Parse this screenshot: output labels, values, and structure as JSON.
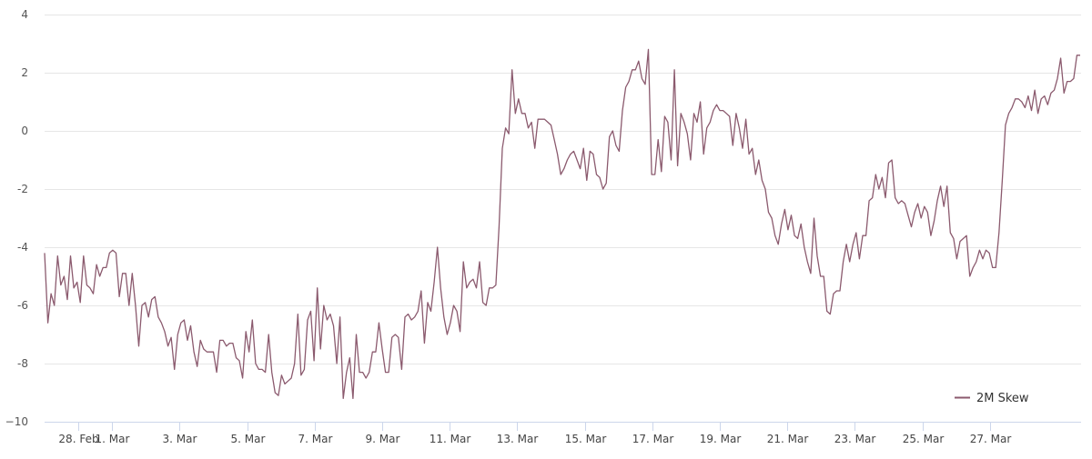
{
  "chart_data": {
    "type": "line",
    "title": "",
    "xlabel": "",
    "ylabel": "",
    "ylim": [
      -10,
      4
    ],
    "yticks": [
      4,
      2,
      0,
      -2,
      -4,
      -6,
      -8,
      -10
    ],
    "xtick_labels": [
      "28. Feb",
      "1. Mar",
      "3. Mar",
      "5. Mar",
      "7. Mar",
      "9. Mar",
      "11. Mar",
      "13. Mar",
      "15. Mar",
      "17. Mar",
      "19. Mar",
      "21. Mar",
      "23. Mar",
      "25. Mar",
      "27. Mar"
    ],
    "grid": true,
    "legend_position": "bottom-right",
    "series": [
      {
        "name": "2M Skew",
        "color": "#8b5a6e",
        "x_start_day": -1.0,
        "step_days": 0.125,
        "values": [
          -4.2,
          -6.6,
          -5.6,
          -6.0,
          -4.3,
          -5.3,
          -5.0,
          -5.8,
          -4.3,
          -5.4,
          -5.2,
          -5.9,
          -4.3,
          -5.3,
          -5.4,
          -5.6,
          -4.6,
          -5.0,
          -4.7,
          -4.7,
          -4.2,
          -4.1,
          -4.2,
          -5.7,
          -4.9,
          -4.9,
          -6.0,
          -4.9,
          -6.0,
          -7.4,
          -6.0,
          -5.9,
          -6.4,
          -5.8,
          -5.7,
          -6.4,
          -6.6,
          -6.9,
          -7.4,
          -7.1,
          -8.2,
          -7.0,
          -6.6,
          -6.5,
          -7.2,
          -6.7,
          -7.6,
          -8.1,
          -7.2,
          -7.5,
          -7.6,
          -7.6,
          -7.6,
          -8.3,
          -7.2,
          -7.2,
          -7.4,
          -7.3,
          -7.3,
          -7.8,
          -7.9,
          -8.5,
          -6.9,
          -7.6,
          -6.5,
          -8.0,
          -8.2,
          -8.2,
          -8.3,
          -7.0,
          -8.3,
          -9.0,
          -9.1,
          -8.4,
          -8.7,
          -8.6,
          -8.5,
          -8.0,
          -6.3,
          -8.4,
          -8.2,
          -6.5,
          -6.2,
          -7.9,
          -5.4,
          -7.5,
          -6.0,
          -6.5,
          -6.3,
          -6.7,
          -8.0,
          -6.4,
          -9.2,
          -8.3,
          -7.8,
          -9.2,
          -7.0,
          -8.3,
          -8.3,
          -8.5,
          -8.3,
          -7.6,
          -7.6,
          -6.6,
          -7.5,
          -8.3,
          -8.3,
          -7.1,
          -7.0,
          -7.1,
          -8.2,
          -6.4,
          -6.3,
          -6.5,
          -6.4,
          -6.2,
          -5.5,
          -7.3,
          -5.9,
          -6.2,
          -5.2,
          -4.0,
          -5.4,
          -6.4,
          -7.0,
          -6.6,
          -6.0,
          -6.2,
          -6.9,
          -4.5,
          -5.4,
          -5.2,
          -5.1,
          -5.4,
          -4.5,
          -5.9,
          -6.0,
          -5.4,
          -5.4,
          -5.3,
          -3.3,
          -0.6,
          0.1,
          -0.1,
          2.1,
          0.6,
          1.1,
          0.6,
          0.6,
          0.1,
          0.3,
          -0.6,
          0.4,
          0.4,
          0.4,
          0.3,
          0.2,
          -0.3,
          -0.8,
          -1.5,
          -1.3,
          -1.0,
          -0.8,
          -0.7,
          -1.0,
          -1.3,
          -0.6,
          -1.7,
          -0.7,
          -0.8,
          -1.5,
          -1.6,
          -2.0,
          -1.8,
          -0.2,
          0.0,
          -0.5,
          -0.7,
          0.7,
          1.5,
          1.7,
          2.1,
          2.1,
          2.4,
          1.8,
          1.6,
          2.8,
          -1.5,
          -1.5,
          -0.3,
          -1.4,
          0.5,
          0.3,
          -1.0,
          2.1,
          -1.2,
          0.6,
          0.3,
          -0.1,
          -1.0,
          0.6,
          0.3,
          1.0,
          -0.8,
          0.1,
          0.3,
          0.7,
          0.9,
          0.7,
          0.7,
          0.6,
          0.5,
          -0.5,
          0.6,
          0.1,
          -0.6,
          0.4,
          -0.8,
          -0.6,
          -1.5,
          -1.0,
          -1.7,
          -2.0,
          -2.8,
          -3.0,
          -3.6,
          -3.9,
          -3.2,
          -2.7,
          -3.4,
          -2.9,
          -3.6,
          -3.7,
          -3.2,
          -4.0,
          -4.5,
          -4.9,
          -3.0,
          -4.3,
          -5.0,
          -5.0,
          -6.2,
          -6.3,
          -5.6,
          -5.5,
          -5.5,
          -4.5,
          -3.9,
          -4.5,
          -3.9,
          -3.5,
          -4.4,
          -3.6,
          -3.6,
          -2.4,
          -2.3,
          -1.5,
          -2.0,
          -1.6,
          -2.3,
          -1.1,
          -1.0,
          -2.3,
          -2.5,
          -2.4,
          -2.5,
          -2.9,
          -3.3,
          -2.8,
          -2.5,
          -3.0,
          -2.6,
          -2.8,
          -3.6,
          -3.1,
          -2.4,
          -1.9,
          -2.6,
          -1.9,
          -3.5,
          -3.7,
          -4.4,
          -3.8,
          -3.7,
          -3.6,
          -5.0,
          -4.7,
          -4.5,
          -4.1,
          -4.4,
          -4.1,
          -4.2,
          -4.7,
          -4.7,
          -3.5,
          -1.7,
          0.2,
          0.6,
          0.8,
          1.1,
          1.1,
          1.0,
          0.8,
          1.2,
          0.7,
          1.4,
          0.6,
          1.1,
          1.2,
          0.9,
          1.3,
          1.4,
          1.8,
          2.5,
          1.3,
          1.7,
          1.7,
          1.8,
          2.6,
          2.6
        ]
      }
    ]
  },
  "y_axis": {
    "labels": [
      "4",
      "2",
      "0",
      "-2",
      "-4",
      "-6",
      "-8",
      "−10"
    ]
  },
  "x_axis": {
    "labels": [
      "28. Feb",
      "1. Mar",
      "3. Mar",
      "5. Mar",
      "7. Mar",
      "9. Mar",
      "11. Mar",
      "13. Mar",
      "15. Mar",
      "17. Mar",
      "19. Mar",
      "21. Mar",
      "23. Mar",
      "25. Mar",
      "27. Mar"
    ]
  },
  "legend": {
    "label": "2M Skew"
  }
}
